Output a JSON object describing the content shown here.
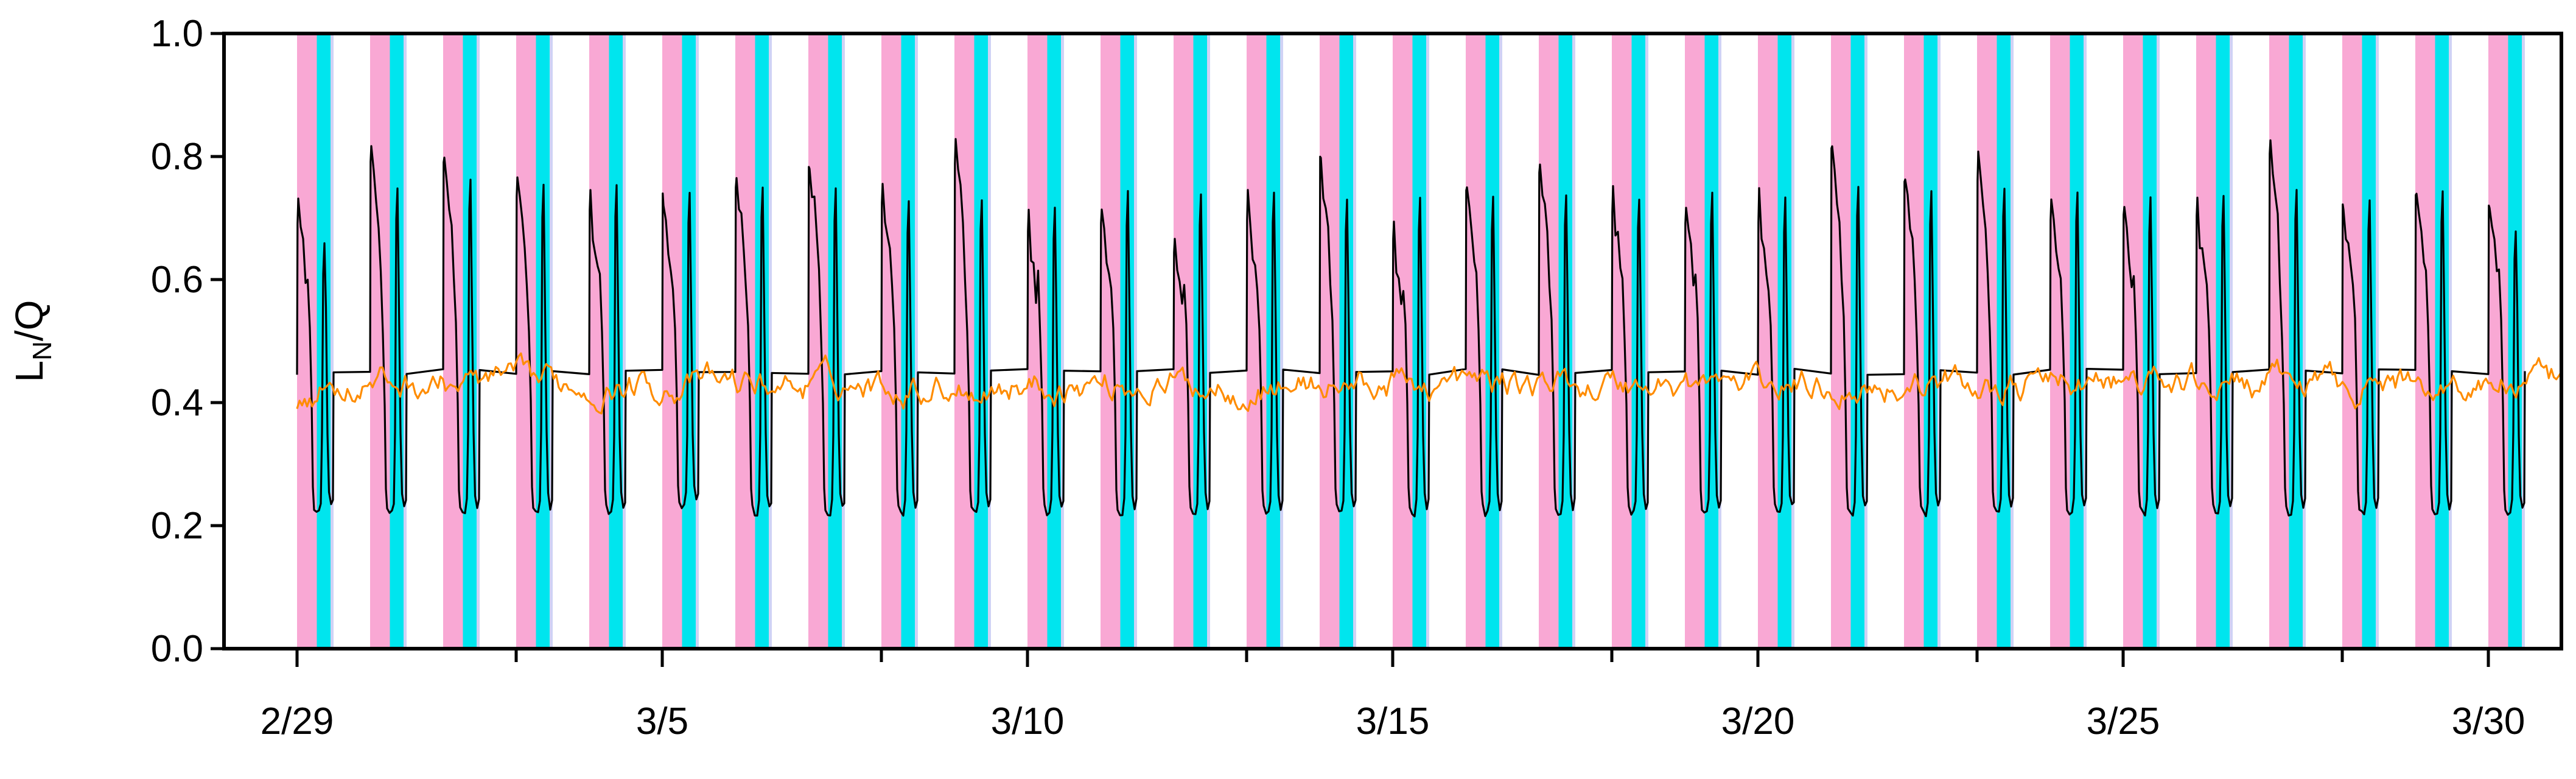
{
  "chart_data": {
    "type": "line",
    "title": "",
    "xlabel": "",
    "ylabel": "L_N/Q",
    "ylabel_parts": {
      "main": "L",
      "sub": "N",
      "rest": "/Q"
    },
    "x_axis_type": "date",
    "xlim": [
      "2024-02-28",
      "2024-03-31"
    ],
    "ylim": [
      0,
      1.0
    ],
    "yticks": [
      0.0,
      0.2,
      0.4,
      0.6,
      0.8,
      1.0
    ],
    "ytick_labels": [
      "0.0",
      "0.2",
      "0.4",
      "0.6",
      "0.8",
      "1.0"
    ],
    "xticks": [
      "2024-02-29",
      "2024-03-05",
      "2024-03-10",
      "2024-03-15",
      "2024-03-20",
      "2024-03-25",
      "2024-03-30"
    ],
    "xtick_labels": [
      "2/29",
      "3/5",
      "3/10",
      "3/15",
      "3/20",
      "3/25",
      "3/30"
    ],
    "minor_xticks": [
      "2024-03-03",
      "2024-03-08",
      "2024-03-13",
      "2024-03-18",
      "2024-03-23",
      "2024-03-28"
    ],
    "grid": false,
    "legend": "none",
    "shaded_bands": {
      "pink": {
        "color": "#f9a8d4",
        "start_hour": 0,
        "end_hour": 6.5
      },
      "cyan": {
        "color": "#00e5ee",
        "start_hour": 6.5,
        "end_hour": 11
      },
      "lavender": {
        "color": "#cfd2f5",
        "start_hour": 11,
        "end_hour": 12
      },
      "days": [
        "2024-02-29",
        "2024-03-01",
        "2024-03-02",
        "2024-03-03",
        "2024-03-04",
        "2024-03-05",
        "2024-03-06",
        "2024-03-07",
        "2024-03-08",
        "2024-03-09",
        "2024-03-10",
        "2024-03-11",
        "2024-03-12",
        "2024-03-13",
        "2024-03-14",
        "2024-03-15",
        "2024-03-16",
        "2024-03-17",
        "2024-03-18",
        "2024-03-19",
        "2024-03-20",
        "2024-03-21",
        "2024-03-22",
        "2024-03-23",
        "2024-03-24",
        "2024-03-25",
        "2024-03-26",
        "2024-03-27",
        "2024-03-28",
        "2024-03-29",
        "2024-03-30"
      ]
    },
    "series": [
      {
        "color": "#000000",
        "daily_peak": [
          0.73,
          0.82,
          0.8,
          0.77,
          0.73,
          0.74,
          0.77,
          0.8,
          0.76,
          0.82,
          0.7,
          0.72,
          0.68,
          0.73,
          0.8,
          0.68,
          0.76,
          0.79,
          0.74,
          0.72,
          0.73,
          0.82,
          0.77,
          0.8,
          0.73,
          0.72,
          0.72,
          0.82,
          0.73,
          0.75,
          0.73
        ],
        "daily_trough": [
          0.22,
          0.22,
          0.22,
          0.22,
          0.22,
          0.23,
          0.22,
          0.22,
          0.22,
          0.22,
          0.22,
          0.22,
          0.22,
          0.22,
          0.22,
          0.22,
          0.22,
          0.22,
          0.22,
          0.22,
          0.22,
          0.22,
          0.22,
          0.22,
          0.22,
          0.22,
          0.22,
          0.22,
          0.22,
          0.22,
          0.22
        ],
        "daily_secondary_peak": [
          0.66,
          0.75,
          0.76,
          0.75,
          0.75,
          0.74,
          0.75,
          0.75,
          0.73,
          0.73,
          0.72,
          0.74,
          0.74,
          0.74,
          0.73,
          0.73,
          0.73,
          0.74,
          0.73,
          0.74,
          0.73,
          0.75,
          0.74,
          0.75,
          0.74,
          0.73,
          0.74,
          0.75,
          0.73,
          0.74,
          0.68
        ]
      },
      {
        "color": "#ff8c00",
        "start": {
          "x": "2024-02-29",
          "y": 0.39
        },
        "mean": 0.43,
        "min": 0.38,
        "max": 0.48,
        "end": {
          "x": "2024-03-31",
          "y": 0.45
        }
      }
    ]
  }
}
